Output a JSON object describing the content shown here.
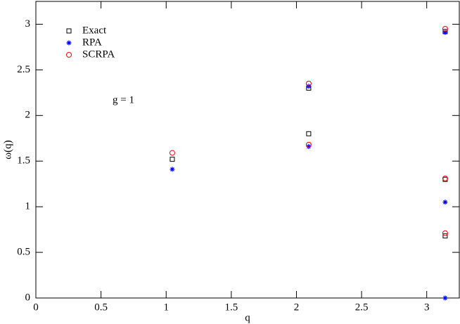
{
  "chart_data": {
    "type": "scatter",
    "xlabel": "q",
    "ylabel": "ω(q)",
    "annotation": "g = 1",
    "xlim": [
      0,
      3.25
    ],
    "ylim": [
      0,
      3.25
    ],
    "xticks": [
      0,
      0.5,
      1,
      1.5,
      2,
      2.5,
      3
    ],
    "yticks": [
      0,
      0.5,
      1,
      1.5,
      2,
      2.5,
      3
    ],
    "series": [
      {
        "name": "Exact",
        "color": "#000000",
        "marker": "square",
        "x": [
          1.047,
          2.094,
          2.094,
          3.1416,
          3.1416,
          3.1416
        ],
        "values": [
          1.52,
          1.8,
          2.3,
          2.92,
          1.3,
          0.68
        ]
      },
      {
        "name": "RPA",
        "color": "#0000ff",
        "marker": "star",
        "x": [
          1.047,
          2.094,
          2.094,
          3.1416,
          3.1416,
          3.1416
        ],
        "values": [
          1.41,
          1.66,
          2.32,
          2.91,
          1.05,
          0
        ]
      },
      {
        "name": "SCRPA",
        "color": "#ff0000",
        "marker": "circle",
        "x": [
          1.047,
          2.094,
          2.094,
          3.1416,
          3.1416,
          3.1416
        ],
        "values": [
          1.59,
          1.68,
          2.35,
          2.95,
          1.31,
          0.71
        ]
      }
    ]
  }
}
